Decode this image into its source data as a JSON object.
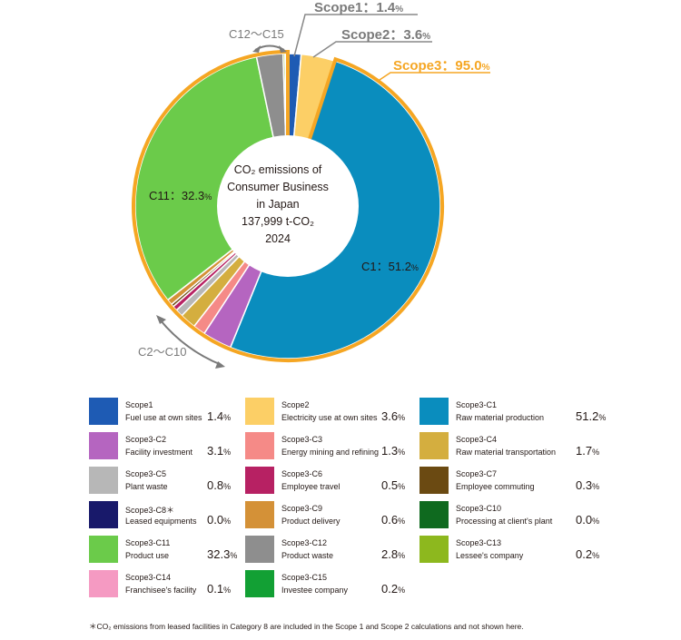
{
  "chart_data": {
    "type": "pie",
    "title": "CO2 emissions of Consumer Business in Japan",
    "total": "137,999 t-CO2",
    "year": "2024",
    "center_lines": [
      "CO₂ emissions of",
      "Consumer Business",
      "in Japan",
      "137,999 t-CO₂",
      "2024"
    ],
    "slices": [
      {
        "code": "Scope1",
        "desc": "Fuel use at own sites",
        "value": 1.4,
        "color": "#1E5BB4"
      },
      {
        "code": "Scope2",
        "desc": "Electricity use at own sites",
        "value": 3.6,
        "color": "#FCCF66"
      },
      {
        "code": "Scope3-C1",
        "desc": "Raw material production",
        "value": 51.2,
        "color": "#0A8DBE"
      },
      {
        "code": "Scope3-C2",
        "desc": "Facility investment",
        "value": 3.1,
        "color": "#B565C0"
      },
      {
        "code": "Scope3-C3",
        "desc": "Energy mining and refining",
        "value": 1.3,
        "color": "#F58A87"
      },
      {
        "code": "Scope3-C4",
        "desc": "Raw material transportation",
        "value": 1.7,
        "color": "#D4AE3F"
      },
      {
        "code": "Scope3-C5",
        "desc": "Plant waste",
        "value": 0.8,
        "color": "#B7B7B7"
      },
      {
        "code": "Scope3-C6",
        "desc": "Employee travel",
        "value": 0.5,
        "color": "#B72163"
      },
      {
        "code": "Scope3-C7",
        "desc": "Employee commuting",
        "value": 0.3,
        "color": "#6B4A12"
      },
      {
        "code": "Scope3-C8＊",
        "desc": "Leased equipments",
        "value": 0.0,
        "color": "#18196A"
      },
      {
        "code": "Scope3-C9",
        "desc": "Product delivery",
        "value": 0.6,
        "color": "#D49137"
      },
      {
        "code": "Scope3-C10",
        "desc": "Processing at client's plant",
        "value": 0.0,
        "color": "#0F6A1F"
      },
      {
        "code": "Scope3-C11",
        "desc": "Product use",
        "value": 32.3,
        "color": "#6BCB4A"
      },
      {
        "code": "Scope3-C12",
        "desc": "Product waste",
        "value": 2.8,
        "color": "#8E8E8E"
      },
      {
        "code": "Scope3-C13",
        "desc": "Lessee's company",
        "value": 0.2,
        "color": "#8DB81E"
      },
      {
        "code": "Scope3-C14",
        "desc": "Franchisee's facility",
        "value": 0.1,
        "color": "#F59AC2"
      },
      {
        "code": "Scope3-C15",
        "desc": "Investee company",
        "value": 0.2,
        "color": "#12A034"
      }
    ],
    "annotations": {
      "scope1": "Scope1：1.4",
      "scope2": "Scope2：3.6",
      "scope3": "Scope3：95.0",
      "c1": "C1：51.2",
      "c11": "C11：32.3",
      "c2_c10": "C2～C10",
      "c12_c15": "C12～C15",
      "unit": "%"
    },
    "scope3_color": "#F5A623"
  },
  "footnote": "＊CO₂ emissions from leased facilities in Category 8 are included in the Scope 1 and Scope 2 calculations and not shown here."
}
